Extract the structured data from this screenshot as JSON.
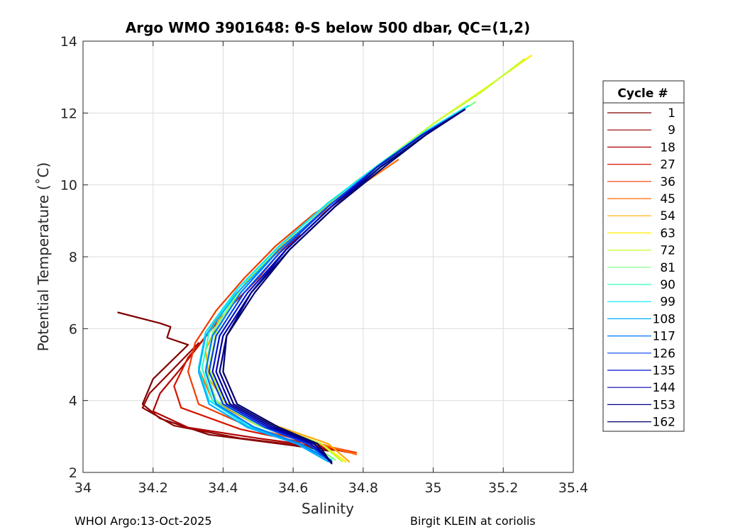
{
  "chart_data": {
    "type": "line",
    "title": "Argo WMO 3901648: θ-S below 500 dbar,  QC=(1,2)",
    "xlabel": "Salinity",
    "ylabel": "Potential Temperature (˚C)",
    "xlim": [
      34,
      35.4
    ],
    "ylim": [
      2,
      14
    ],
    "xticks": [
      34,
      34.2,
      34.4,
      34.6,
      34.8,
      35,
      35.2,
      35.4
    ],
    "xtick_labels": [
      "34",
      "34.2",
      "34.4",
      "34.6",
      "34.8",
      "35",
      "35.2",
      "35.4"
    ],
    "yticks": [
      2,
      4,
      6,
      8,
      10,
      12,
      14
    ],
    "ytick_labels": [
      "2",
      "4",
      "6",
      "8",
      "10",
      "12",
      "14"
    ],
    "grid": true,
    "legend_title": "Cycle #",
    "legend_position": "outside-right",
    "series": [
      {
        "name": "1",
        "color": "#7f0000",
        "x": [
          34.1,
          34.22,
          34.25,
          34.24,
          34.3,
          34.2,
          34.17,
          34.22,
          34.36,
          34.6,
          34.7
        ],
        "y": [
          6.45,
          6.15,
          6.05,
          5.75,
          5.55,
          4.6,
          3.9,
          3.5,
          3.05,
          2.75,
          2.6
        ]
      },
      {
        "name": "9",
        "color": "#900000",
        "x": [
          34.33,
          34.26,
          34.19,
          34.17,
          34.26,
          34.45,
          34.62,
          34.72
        ],
        "y": [
          5.6,
          4.9,
          4.2,
          3.8,
          3.3,
          2.95,
          2.75,
          2.62
        ]
      },
      {
        "name": "18",
        "color": "#b00000",
        "x": [
          34.42,
          34.36,
          34.28,
          34.22,
          34.2,
          34.3,
          34.5,
          34.65,
          34.74
        ],
        "y": [
          6.8,
          5.9,
          4.9,
          4.2,
          3.7,
          3.25,
          2.95,
          2.75,
          2.6
        ]
      },
      {
        "name": "27",
        "color": "#d41400",
        "x": [
          34.62,
          34.56,
          34.5,
          34.42,
          34.36,
          34.3,
          34.26,
          34.28,
          34.45,
          34.62,
          34.76
        ],
        "y": [
          8.6,
          8.1,
          7.4,
          6.6,
          5.9,
          5.2,
          4.4,
          3.8,
          3.2,
          2.85,
          2.55
        ]
      },
      {
        "name": "36",
        "color": "#f03c00",
        "x": [
          34.78,
          34.66,
          34.55,
          34.46,
          34.38,
          34.32,
          34.3,
          34.33,
          34.48,
          34.64,
          34.78
        ],
        "y": [
          9.9,
          9.2,
          8.3,
          7.4,
          6.5,
          5.6,
          4.8,
          3.9,
          3.25,
          2.85,
          2.55
        ]
      },
      {
        "name": "45",
        "color": "#ff6a00",
        "x": [
          34.9,
          34.78,
          34.64,
          34.52,
          34.42,
          34.35,
          34.33,
          34.37,
          34.5,
          34.66,
          34.78
        ],
        "y": [
          10.7,
          9.9,
          8.9,
          7.8,
          6.8,
          5.8,
          4.9,
          4.0,
          3.3,
          2.85,
          2.5
        ]
      },
      {
        "name": "54",
        "color": "#ffaa00",
        "x": [
          35.05,
          34.92,
          34.78,
          34.63,
          34.5,
          34.4,
          34.35,
          34.36,
          34.41,
          34.55,
          34.7,
          34.76
        ],
        "y": [
          11.9,
          11.1,
          10.1,
          8.9,
          7.7,
          6.5,
          5.4,
          4.6,
          3.9,
          3.3,
          2.8,
          2.3
        ]
      },
      {
        "name": "63",
        "color": "#ffee00",
        "x": [
          35.28,
          35.15,
          35.0,
          34.85,
          34.7,
          34.56,
          34.45,
          34.38,
          34.36,
          34.4,
          34.54,
          34.68,
          34.75
        ],
        "y": [
          13.6,
          12.7,
          11.7,
          10.6,
          9.5,
          8.3,
          7.1,
          5.9,
          4.9,
          4.0,
          3.3,
          2.8,
          2.3
        ]
      },
      {
        "name": "72",
        "color": "#c0ff30",
        "x": [
          35.26,
          35.14,
          35.0,
          34.85,
          34.7,
          34.56,
          34.45,
          34.38,
          34.36,
          34.4,
          34.54,
          34.68,
          34.74
        ],
        "y": [
          13.5,
          12.6,
          11.7,
          10.6,
          9.5,
          8.3,
          7.1,
          5.9,
          4.9,
          4.0,
          3.3,
          2.8,
          2.3
        ]
      },
      {
        "name": "81",
        "color": "#7dff7a",
        "x": [
          35.12,
          35.0,
          34.86,
          34.71,
          34.57,
          34.45,
          34.37,
          34.35,
          34.38,
          34.5,
          34.65,
          34.72
        ],
        "y": [
          12.3,
          11.6,
          10.6,
          9.5,
          8.3,
          7.1,
          5.9,
          4.9,
          4.0,
          3.3,
          2.8,
          2.35
        ]
      },
      {
        "name": "90",
        "color": "#30ffc0",
        "x": [
          35.1,
          34.98,
          34.85,
          34.7,
          34.56,
          34.44,
          34.36,
          34.34,
          34.37,
          34.48,
          34.62,
          34.71
        ],
        "y": [
          12.2,
          11.5,
          10.6,
          9.5,
          8.3,
          7.1,
          5.9,
          4.9,
          4.0,
          3.3,
          2.8,
          2.35
        ]
      },
      {
        "name": "99",
        "color": "#00e8ff",
        "x": [
          35.1,
          34.98,
          34.85,
          34.7,
          34.56,
          34.44,
          34.35,
          34.33,
          34.36,
          34.47,
          34.61,
          34.71
        ],
        "y": [
          12.2,
          11.5,
          10.6,
          9.5,
          8.3,
          7.1,
          5.9,
          4.9,
          4.0,
          3.3,
          2.8,
          2.35
        ]
      },
      {
        "name": "108",
        "color": "#00b0ff",
        "x": [
          35.09,
          34.97,
          34.84,
          34.7,
          34.56,
          34.44,
          34.35,
          34.33,
          34.36,
          34.47,
          34.61,
          34.7
        ],
        "y": [
          12.1,
          11.4,
          10.5,
          9.4,
          8.2,
          7.0,
          5.8,
          4.8,
          3.9,
          3.25,
          2.8,
          2.3
        ]
      },
      {
        "name": "117",
        "color": "#0078ff",
        "x": [
          35.09,
          34.97,
          34.84,
          34.7,
          34.56,
          34.45,
          34.37,
          34.35,
          34.38,
          34.49,
          34.62,
          34.71
        ],
        "y": [
          12.1,
          11.4,
          10.5,
          9.4,
          8.2,
          7.0,
          5.8,
          4.8,
          3.9,
          3.25,
          2.8,
          2.3
        ]
      },
      {
        "name": "126",
        "color": "#0040f0",
        "x": [
          35.09,
          34.97,
          34.84,
          34.7,
          34.57,
          34.46,
          34.38,
          34.36,
          34.4,
          34.52,
          34.64,
          34.71
        ],
        "y": [
          12.1,
          11.4,
          10.5,
          9.4,
          8.2,
          7.0,
          5.8,
          4.8,
          3.9,
          3.25,
          2.8,
          2.3
        ]
      },
      {
        "name": "135",
        "color": "#0010c8",
        "x": [
          35.09,
          34.97,
          34.84,
          34.71,
          34.58,
          34.47,
          34.39,
          34.37,
          34.41,
          34.53,
          34.65,
          34.71
        ],
        "y": [
          12.1,
          11.4,
          10.5,
          9.4,
          8.2,
          7.0,
          5.8,
          4.8,
          3.9,
          3.25,
          2.8,
          2.3
        ]
      },
      {
        "name": "144",
        "color": "#0000a8",
        "x": [
          35.09,
          34.98,
          34.85,
          34.71,
          34.58,
          34.48,
          34.4,
          34.38,
          34.42,
          34.54,
          34.66,
          34.71
        ],
        "y": [
          12.1,
          11.4,
          10.5,
          9.4,
          8.2,
          7.0,
          5.8,
          4.8,
          3.9,
          3.25,
          2.8,
          2.25
        ]
      },
      {
        "name": "153",
        "color": "#000088",
        "x": [
          35.09,
          34.98,
          34.85,
          34.72,
          34.59,
          34.48,
          34.41,
          34.39,
          34.43,
          34.55,
          34.66,
          34.71
        ],
        "y": [
          12.1,
          11.4,
          10.5,
          9.4,
          8.2,
          7.0,
          5.8,
          4.8,
          3.9,
          3.25,
          2.8,
          2.25
        ]
      },
      {
        "name": "162",
        "color": "#00006a",
        "x": [
          35.09,
          34.98,
          34.86,
          34.72,
          34.59,
          34.49,
          34.41,
          34.4,
          34.44,
          34.56,
          34.67,
          34.71
        ],
        "y": [
          12.1,
          11.4,
          10.5,
          9.4,
          8.2,
          7.0,
          5.8,
          4.8,
          3.9,
          3.25,
          2.8,
          2.25
        ]
      }
    ]
  },
  "footer": {
    "left": "WHOI Argo:13-Oct-2025",
    "right": "Birgit KLEIN at coriolis"
  }
}
